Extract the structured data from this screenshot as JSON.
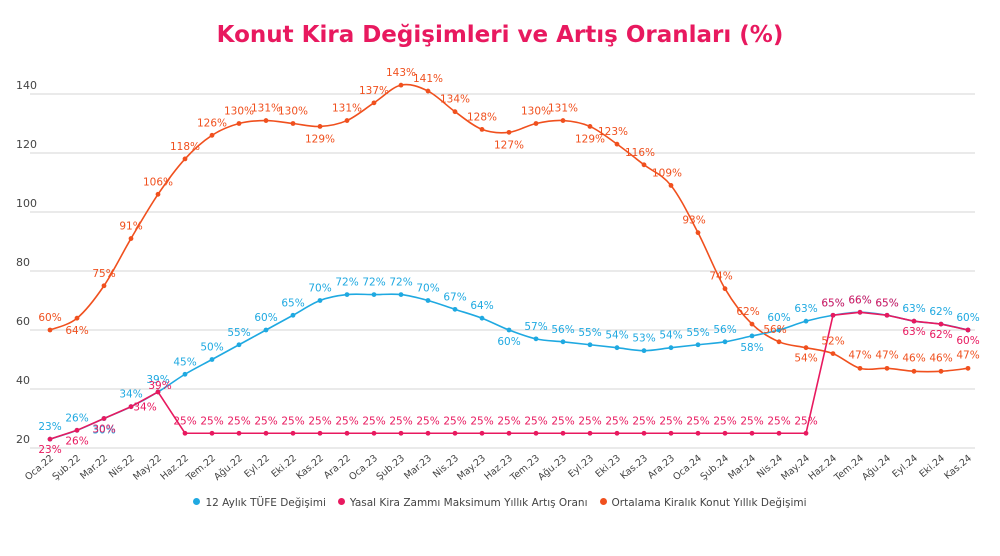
{
  "chart_data": {
    "type": "line",
    "title": "Konut Kira Değişimleri ve Artış Oranları (%)",
    "xlabel": "",
    "ylabel": "",
    "ylim": [
      20,
      145
    ],
    "yticks": [
      20,
      40,
      60,
      80,
      100,
      120,
      140
    ],
    "grid": true,
    "legend_position": "bottom",
    "categories": [
      "Oca.22",
      "Şub.22",
      "Mar.22",
      "Nis.22",
      "May.22",
      "Haz.22",
      "Tem.22",
      "Ağu.22",
      "Eyl.22",
      "Eki.22",
      "Kas.22",
      "Ara.22",
      "Oca.23",
      "Şub.23",
      "Mar.23",
      "Nis.23",
      "May.23",
      "Haz.23",
      "Tem.23",
      "Ağu.23",
      "Eyl.23",
      "Eki.23",
      "Kas.23",
      "Ara.23",
      "Oca.24",
      "Şub.24",
      "Mar.24",
      "Nis.24",
      "May.24",
      "Haz.24",
      "Tem.24",
      "Ağu.24",
      "Eyl.24",
      "Eki.24",
      "Kas.24"
    ],
    "series": [
      {
        "name": "12 Aylık TÜFE Değişimi",
        "color": "#1fa9e1",
        "values": [
          23,
          26,
          30,
          34,
          39,
          45,
          50,
          55,
          60,
          65,
          70,
          72,
          72,
          72,
          70,
          67,
          64,
          60,
          57,
          56,
          55,
          54,
          53,
          54,
          55,
          56,
          58,
          60,
          63,
          65,
          66,
          65,
          63,
          62,
          60
        ],
        "labels": [
          "23%",
          "26%",
          "30%",
          "34%",
          "39%",
          "45%",
          "50%",
          "55%",
          "60%",
          "65%",
          "70%",
          "72%",
          "72%",
          "72%",
          "70%",
          "67%",
          "64%",
          "60%",
          "57%",
          "56%",
          "55%",
          "54%",
          "53%",
          "54%",
          "55%",
          "56%",
          "58%",
          "60%",
          "63%",
          "65%",
          "66%",
          "65%",
          "63%",
          "62%",
          "60%"
        ]
      },
      {
        "name": "Yasal Kira Zammı Maksimum Yıllık Artış Oranı",
        "color": "#e8195f",
        "values": [
          23,
          26,
          30,
          34,
          39,
          25,
          25,
          25,
          25,
          25,
          25,
          25,
          25,
          25,
          25,
          25,
          25,
          25,
          25,
          25,
          25,
          25,
          25,
          25,
          25,
          25,
          25,
          25,
          25,
          65,
          66,
          65,
          63,
          62,
          60
        ],
        "labels": [
          "23%",
          "26%",
          "30%",
          "34%",
          "39%",
          "25%",
          "25%",
          "25%",
          "25%",
          "25%",
          "25%",
          "25%",
          "25%",
          "25%",
          "25%",
          "25%",
          "25%",
          "25%",
          "25%",
          "25%",
          "25%",
          "25%",
          "25%",
          "25%",
          "25%",
          "25%",
          "25%",
          "25%",
          "25%",
          "65%",
          "66%",
          "65%",
          "63%",
          "62%",
          "60%"
        ]
      },
      {
        "name": "Ortalama Kiralık Konut Yıllık Değişimi",
        "color": "#f0501e",
        "values": [
          60,
          64,
          75,
          91,
          106,
          118,
          126,
          130,
          131,
          130,
          129,
          131,
          137,
          143,
          141,
          134,
          128,
          127,
          130,
          131,
          129,
          123,
          116,
          109,
          93,
          74,
          62,
          56,
          54,
          52,
          47,
          47,
          46,
          46,
          47
        ],
        "labels": [
          "60%",
          "64%",
          "75%",
          "91%",
          "106%",
          "118%",
          "126%",
          "130%",
          "131%",
          "130%",
          "129%",
          "131%",
          "137%",
          "143%",
          "141%",
          "134%",
          "128%",
          "127%",
          "130%",
          "131%",
          "129%",
          "123%",
          "116%",
          "109%",
          "93%",
          "74%",
          "62%",
          "56%",
          "54%",
          "52%",
          "47%",
          "47%",
          "46%",
          "46%",
          "47%"
        ]
      }
    ]
  }
}
